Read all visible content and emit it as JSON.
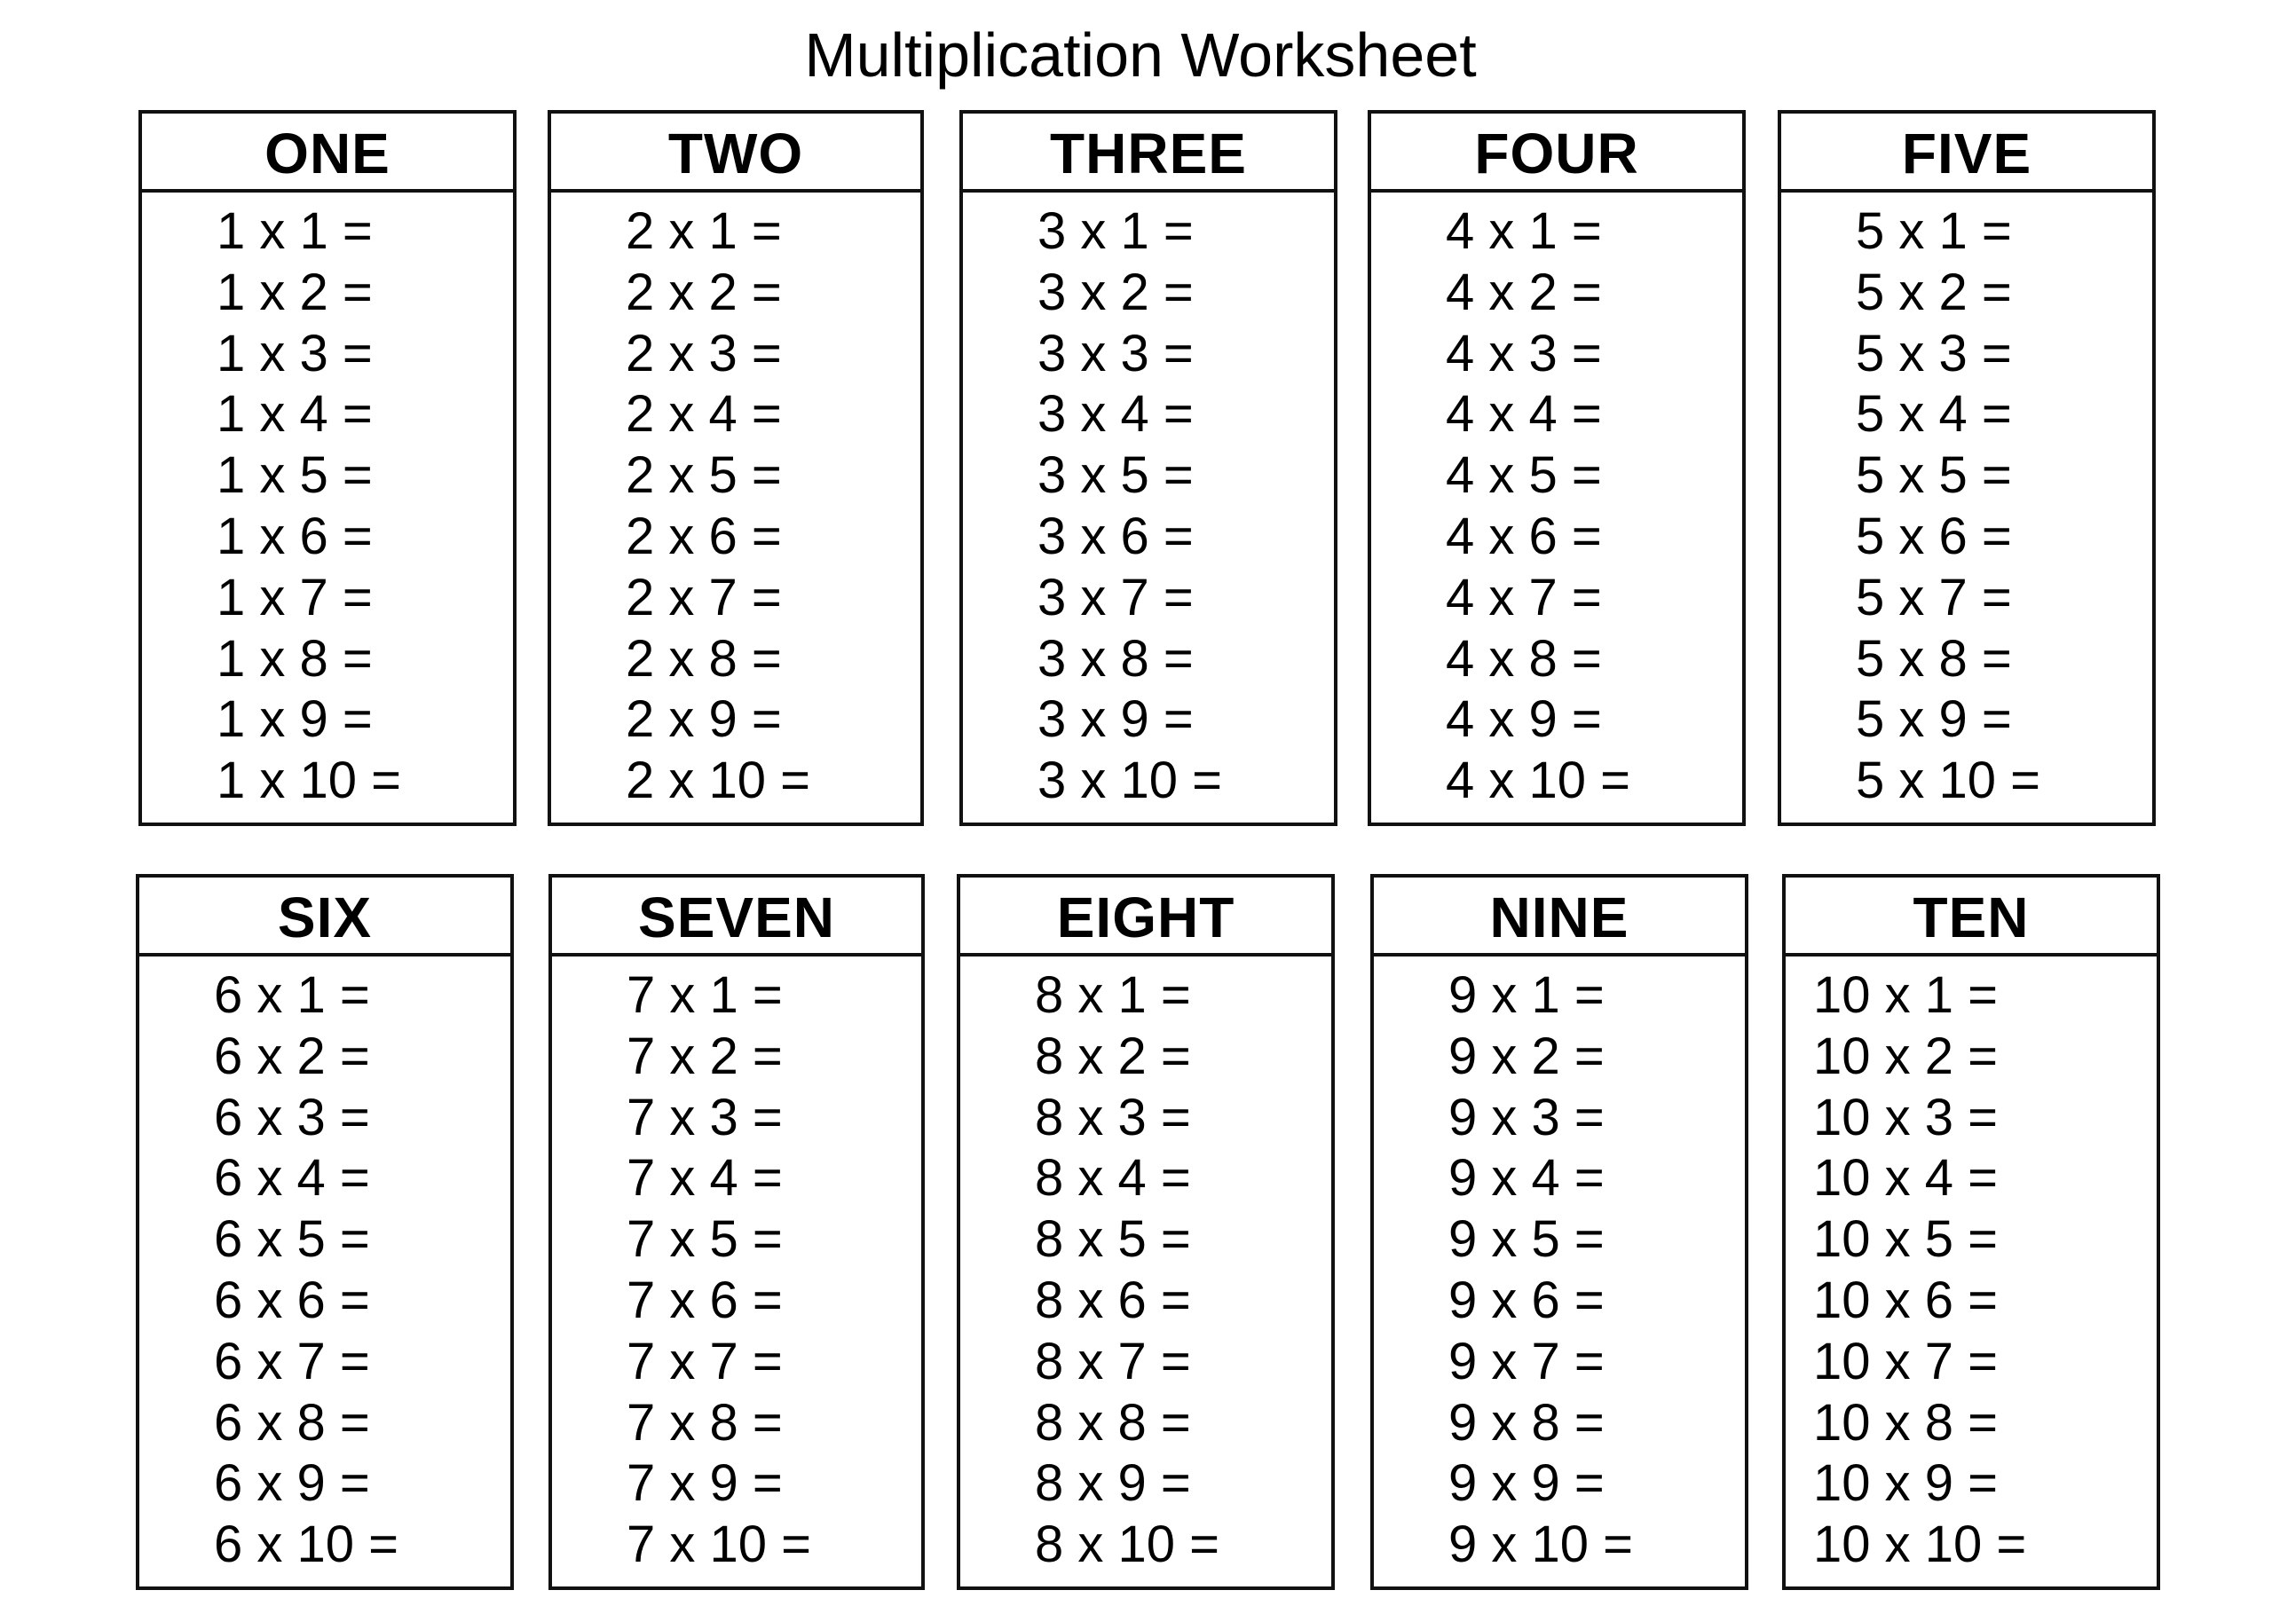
{
  "title": "Multiplication Worksheet",
  "tables": [
    {
      "heading": "ONE",
      "lines": [
        "1 x 1 =",
        "1 x 2 =",
        "1 x 3 =",
        "1 x 4 =",
        "1 x 5 =",
        "1 x 6 =",
        "1 x 7 =",
        "1 x 8 =",
        "1 x 9 =",
        "1 x 10 ="
      ]
    },
    {
      "heading": "TWO",
      "lines": [
        "2 x 1 =",
        "2 x 2 =",
        "2 x 3 =",
        "2 x 4 =",
        "2 x 5 =",
        "2 x 6 =",
        "2 x 7 =",
        "2 x 8 =",
        "2 x 9 =",
        "2 x 10 ="
      ]
    },
    {
      "heading": "THREE",
      "lines": [
        "3 x 1 =",
        "3 x 2 =",
        "3 x 3 =",
        "3 x 4 =",
        "3 x 5 =",
        "3 x 6 =",
        "3 x 7 =",
        "3 x 8 =",
        "3 x 9 =",
        "3 x 10 ="
      ]
    },
    {
      "heading": "FOUR",
      "lines": [
        "4 x 1 =",
        "4 x 2 =",
        "4 x 3 =",
        "4 x 4 =",
        "4 x 5 =",
        "4 x 6 =",
        "4 x 7 =",
        "4 x 8 =",
        "4 x 9 =",
        "4 x 10 ="
      ]
    },
    {
      "heading": "FIVE",
      "lines": [
        "5 x 1 =",
        "5 x 2 =",
        "5 x 3 =",
        "5 x 4 =",
        "5 x 5 =",
        "5 x 6 =",
        "5 x 7 =",
        "5 x 8 =",
        "5 x 9 =",
        "5 x 10 ="
      ]
    },
    {
      "heading": "SIX",
      "lines": [
        "6 x 1 =",
        "6 x 2 =",
        "6 x 3 =",
        "6 x 4 =",
        "6 x 5 =",
        "6 x 6 =",
        "6 x 7 =",
        "6 x 8 =",
        "6 x 9 =",
        "6 x 10 ="
      ]
    },
    {
      "heading": "SEVEN",
      "lines": [
        "7 x 1 =",
        "7 x 2 =",
        "7 x 3 =",
        "7 x 4 =",
        "7 x 5 =",
        "7 x 6 =",
        "7 x 7 =",
        "7 x 8 =",
        "7 x 9 =",
        "7 x 10 ="
      ]
    },
    {
      "heading": "EIGHT",
      "lines": [
        "8 x 1 =",
        "8 x 2 =",
        "8 x 3 =",
        "8 x 4 =",
        "8 x 5 =",
        "8 x 6 =",
        "8 x 7 =",
        "8 x 8 =",
        "8 x 9 =",
        "8 x 10 ="
      ]
    },
    {
      "heading": "NINE",
      "lines": [
        "9 x 1 =",
        "9 x 2 =",
        "9 x 3 =",
        "9 x 4 =",
        "9 x 5 =",
        "9 x 6 =",
        "9 x 7 =",
        "9 x 8 =",
        "9 x 9 =",
        "9 x 10 ="
      ]
    },
    {
      "heading": "TEN",
      "lines": [
        "10 x 1 =",
        "10 x 2 =",
        "10 x 3 =",
        "10 x 4 =",
        "10 x 5 =",
        "10 x 6 =",
        "10 x 7 =",
        "10 x 8 =",
        "10 x 9 =",
        "10 x 10 ="
      ]
    }
  ]
}
